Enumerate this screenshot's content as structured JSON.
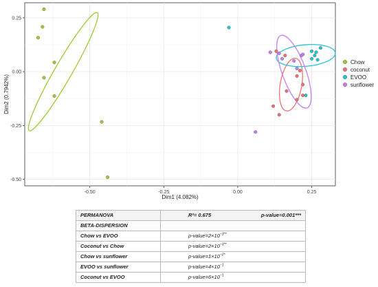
{
  "chart_data": {
    "type": "scatter",
    "xlabel": "Dim1 (4.082%)",
    "ylabel": "Dim2 (0.7942%)",
    "xlim": [
      -0.72,
      0.33
    ],
    "ylim": [
      -0.53,
      0.32
    ],
    "x_ticks": [
      -0.75,
      -0.5,
      -0.25,
      0.0,
      0.25
    ],
    "x_tick_labels": [
      "-0.75",
      "-0.50",
      "-0.25",
      "0.00",
      "0.25"
    ],
    "y_ticks": [
      -0.5,
      -0.25,
      0.0,
      0.25
    ],
    "y_tick_labels": [
      "-0.50",
      "-0.25",
      "0.00",
      "0.25"
    ],
    "grid": true,
    "legend_position": "right",
    "series": [
      {
        "name": "Chow",
        "color": "#9acd32",
        "points": [
          [
            -0.655,
            0.29
          ],
          [
            -0.66,
            0.208
          ],
          [
            -0.675,
            0.158
          ],
          [
            -0.62,
            0.043
          ],
          [
            -0.655,
            -0.028
          ],
          [
            -0.62,
            -0.113
          ],
          [
            -0.46,
            -0.233
          ],
          [
            -0.44,
            -0.49
          ]
        ],
        "ellipse": {
          "cx": -0.59,
          "cy": 0.0,
          "rx": 0.23,
          "ry": 0.04,
          "angle_deg": -60
        }
      },
      {
        "name": "coconut",
        "color": "#f0706e",
        "points": [
          [
            0.13,
            0.095
          ],
          [
            0.16,
            0.075
          ],
          [
            0.21,
            0.005
          ],
          [
            0.2,
            -0.02
          ],
          [
            0.22,
            -0.06
          ],
          [
            0.165,
            -0.09
          ],
          [
            0.12,
            -0.16
          ],
          [
            0.14,
            -0.2
          ],
          [
            0.2,
            -0.13
          ],
          [
            0.22,
            -0.11
          ]
        ],
        "ellipse": {
          "cx": 0.18,
          "cy": -0.06,
          "rx": 0.09,
          "ry": 0.05,
          "angle_deg": 100
        }
      },
      {
        "name": "EVOO",
        "color": "#1fc5d8",
        "points": [
          [
            -0.03,
            0.205
          ],
          [
            0.28,
            0.11
          ],
          [
            0.25,
            0.095
          ],
          [
            0.265,
            0.09
          ],
          [
            0.26,
            0.075
          ],
          [
            0.25,
            0.06
          ],
          [
            0.27,
            0.055
          ],
          [
            0.23,
            -0.11
          ]
        ],
        "ellipse": {
          "cx": 0.23,
          "cy": 0.075,
          "rx": 0.1,
          "ry": 0.05,
          "angle_deg": -5
        }
      },
      {
        "name": "sunflower",
        "color": "#c77cff",
        "points": [
          [
            0.11,
            0.09
          ],
          [
            0.14,
            0.085
          ],
          [
            0.215,
            0.075
          ],
          [
            0.19,
            0.05
          ],
          [
            0.15,
            0.06
          ],
          [
            0.2,
            0.015
          ],
          [
            0.22,
            0.08
          ],
          [
            0.06,
            -0.28
          ]
        ],
        "ellipse": {
          "cx": 0.19,
          "cy": 0.0,
          "rx": 0.13,
          "ry": 0.055,
          "angle_deg": 70
        }
      }
    ]
  },
  "stats_table": {
    "header": {
      "label": "PERMANOVA",
      "r2": "R²= 0.675",
      "p_value": "p-value=0.001***"
    },
    "section_label": "BETA-DISPERSION",
    "rows": [
      {
        "comparison": "Chow vs EVOO",
        "p_base": "p-value=2×10",
        "p_exp": "−3",
        "sig": "**"
      },
      {
        "comparison": "Coconut vs Chow",
        "p_base": "p-value=2×10",
        "p_exp": "−3",
        "sig": "**"
      },
      {
        "comparison": "Chow vs sunflower",
        "p_base": "p-value=1×10",
        "p_exp": "−2",
        "sig": "*"
      },
      {
        "comparison": "EVOO vs sunflower",
        "p_base": "p-value=4×10",
        "p_exp": "−1",
        "sig": ""
      },
      {
        "comparison": "Coconut vs EVOO",
        "p_base": "p-value=6×10",
        "p_exp": "−1",
        "sig": ""
      }
    ]
  }
}
